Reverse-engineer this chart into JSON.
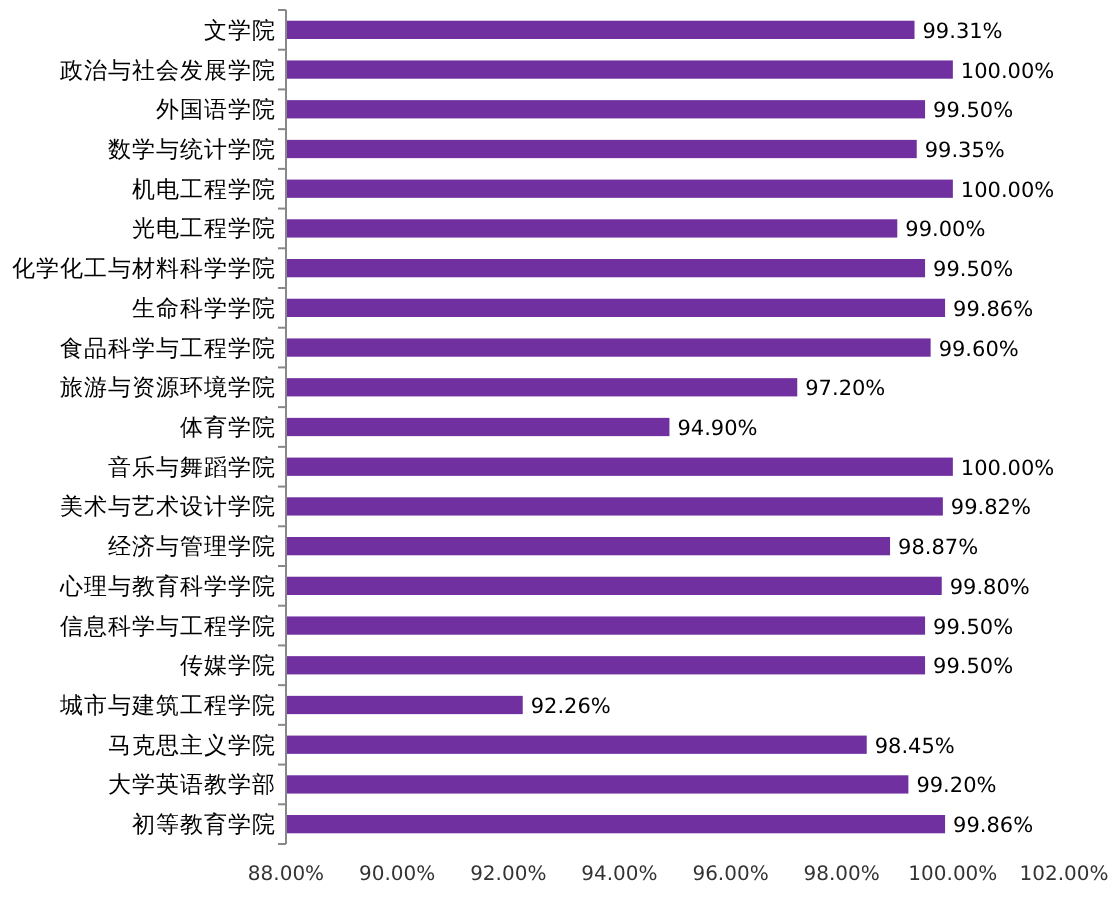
{
  "chart_data": {
    "type": "bar",
    "orientation": "horizontal",
    "color": "#7030a0",
    "categories": [
      "文学院",
      "政治与社会发展学院",
      "外国语学院",
      "数学与统计学院",
      "机电工程学院",
      "光电工程学院",
      "化学化工与材料科学学院",
      "生命科学学院",
      "食品科学与工程学院",
      "旅游与资源环境学院",
      "体育学院",
      "音乐与舞蹈学院",
      "美术与艺术设计学院",
      "经济与管理学院",
      "心理与教育科学学院",
      "信息科学与工程学院",
      "传媒学院",
      "城市与建筑工程学院",
      "马克思主义学院",
      "大学英语教学部",
      "初等教育学院"
    ],
    "values": [
      99.31,
      100.0,
      99.5,
      99.35,
      100.0,
      99.0,
      99.5,
      99.86,
      99.6,
      97.2,
      94.9,
      100.0,
      99.82,
      98.87,
      99.8,
      99.5,
      99.5,
      92.26,
      98.45,
      99.2,
      99.86
    ],
    "value_labels": [
      "99.31%",
      "100.00%",
      "99.50%",
      "99.35%",
      "100.00%",
      "99.00%",
      "99.50%",
      "99.86%",
      "99.60%",
      "97.20%",
      "94.90%",
      "100.00%",
      "99.82%",
      "98.87%",
      "99.80%",
      "99.50%",
      "99.50%",
      "92.26%",
      "98.45%",
      "99.20%",
      "99.86%"
    ],
    "xlim": [
      88,
      102
    ],
    "xticks": [
      {
        "value": 88,
        "label": "88.00%"
      },
      {
        "value": 90,
        "label": "90.00%"
      },
      {
        "value": 92,
        "label": "92.00%"
      },
      {
        "value": 94,
        "label": "94.00%"
      },
      {
        "value": 96,
        "label": "96.00%"
      },
      {
        "value": 98,
        "label": "98.00%"
      },
      {
        "value": 100,
        "label": "100.00%"
      },
      {
        "value": 102,
        "label": "102.00%"
      }
    ]
  }
}
